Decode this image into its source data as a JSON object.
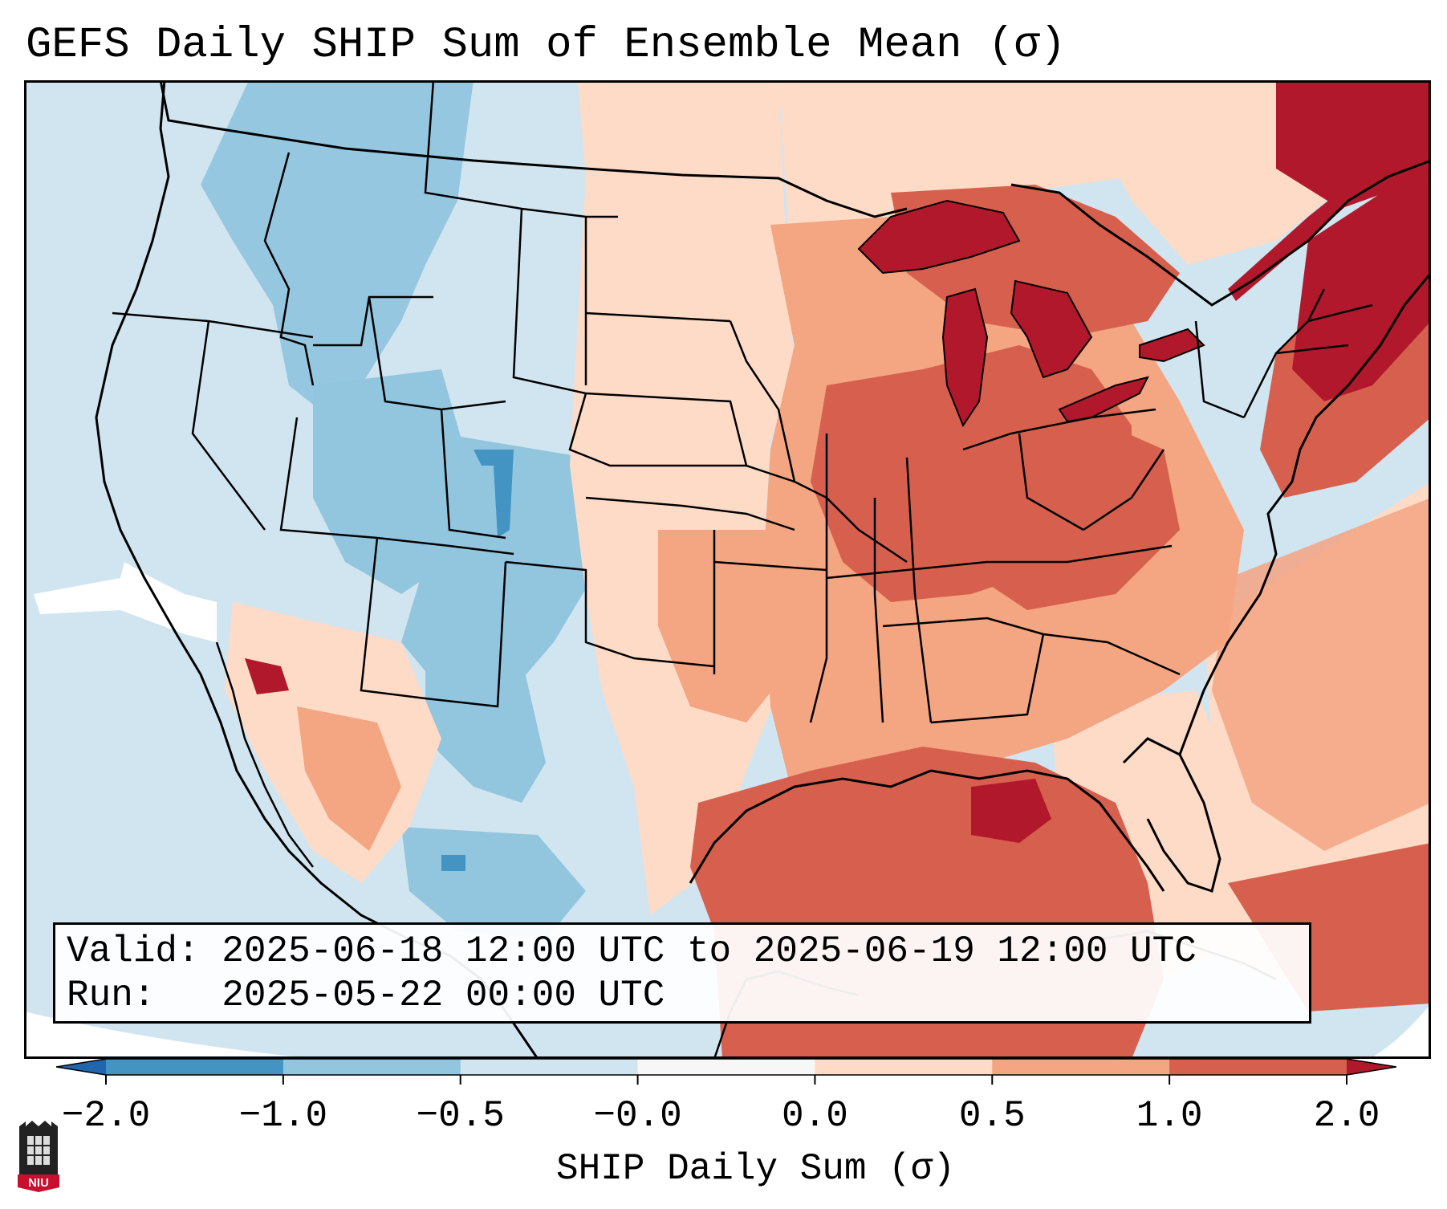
{
  "title": "GEFS Daily SHIP Sum of Ensemble Mean (σ)",
  "info": {
    "valid_label": "Valid:",
    "valid_value": "2025-06-18 12:00 UTC to 2025-06-19 12:00 UTC",
    "run_label": "Run:",
    "run_value": "2025-05-22 00:00 UTC"
  },
  "colorbar": {
    "label": "SHIP Daily Sum (σ)",
    "ticks": [
      "−2.0",
      "−1.0",
      "−0.5",
      "−0.0",
      "0.0",
      "0.5",
      "1.0",
      "2.0"
    ],
    "bin_colors": [
      "#4393c3",
      "#92c5de",
      "#d1e5f0",
      "#f7f7f7",
      "#fddbc7",
      "#f4a582",
      "#d6604d"
    ],
    "under_color": "#2166ac",
    "over_color": "#b2182b"
  },
  "map": {
    "ocean_color": "#d1e5f0",
    "outside_color": "#ffffff",
    "border_color": "#000000"
  },
  "logo": {
    "text": "NIU"
  }
}
